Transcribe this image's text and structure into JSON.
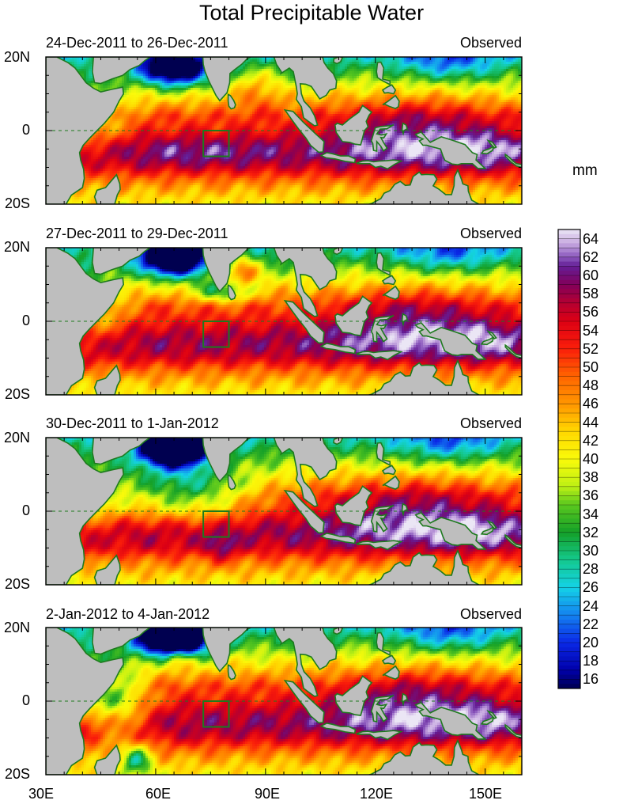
{
  "title": "Total Precipitable Water",
  "unit": "mm",
  "panels": [
    {
      "date_range": "24-Dec-2011 to 26-Dec-2011",
      "label": "Observed"
    },
    {
      "date_range": "27-Dec-2011 to 29-Dec-2011",
      "label": "Observed"
    },
    {
      "date_range": "30-Dec-2011 to 1-Jan-2012",
      "label": "Observed"
    },
    {
      "date_range": "2-Jan-2012 to 4-Jan-2012",
      "label": "Observed"
    }
  ],
  "axes": {
    "lat_labels": [
      "20N",
      "0",
      "20S"
    ],
    "lon_labels": [
      "30E",
      "60E",
      "90E",
      "120E",
      "150E"
    ]
  },
  "colorbar_labels": [
    "64",
    "62",
    "60",
    "58",
    "56",
    "54",
    "52",
    "50",
    "48",
    "46",
    "44",
    "42",
    "40",
    "38",
    "36",
    "34",
    "32",
    "30",
    "28",
    "26",
    "24",
    "22",
    "20",
    "18",
    "16"
  ],
  "colors": {
    "land": "#bebebe",
    "coastline": "#1e7a1e",
    "equator": "#1e7a1e"
  },
  "chart_data": {
    "type": "heatmap",
    "title": "Total Precipitable Water",
    "colorbar_unit": "mm",
    "colorbar_range": [
      15,
      65
    ],
    "lon_range": [
      30,
      160
    ],
    "lat_range": [
      -20,
      20
    ],
    "box_region": {
      "lon": [
        73,
        80
      ],
      "lat": [
        -7,
        0
      ]
    }
  }
}
